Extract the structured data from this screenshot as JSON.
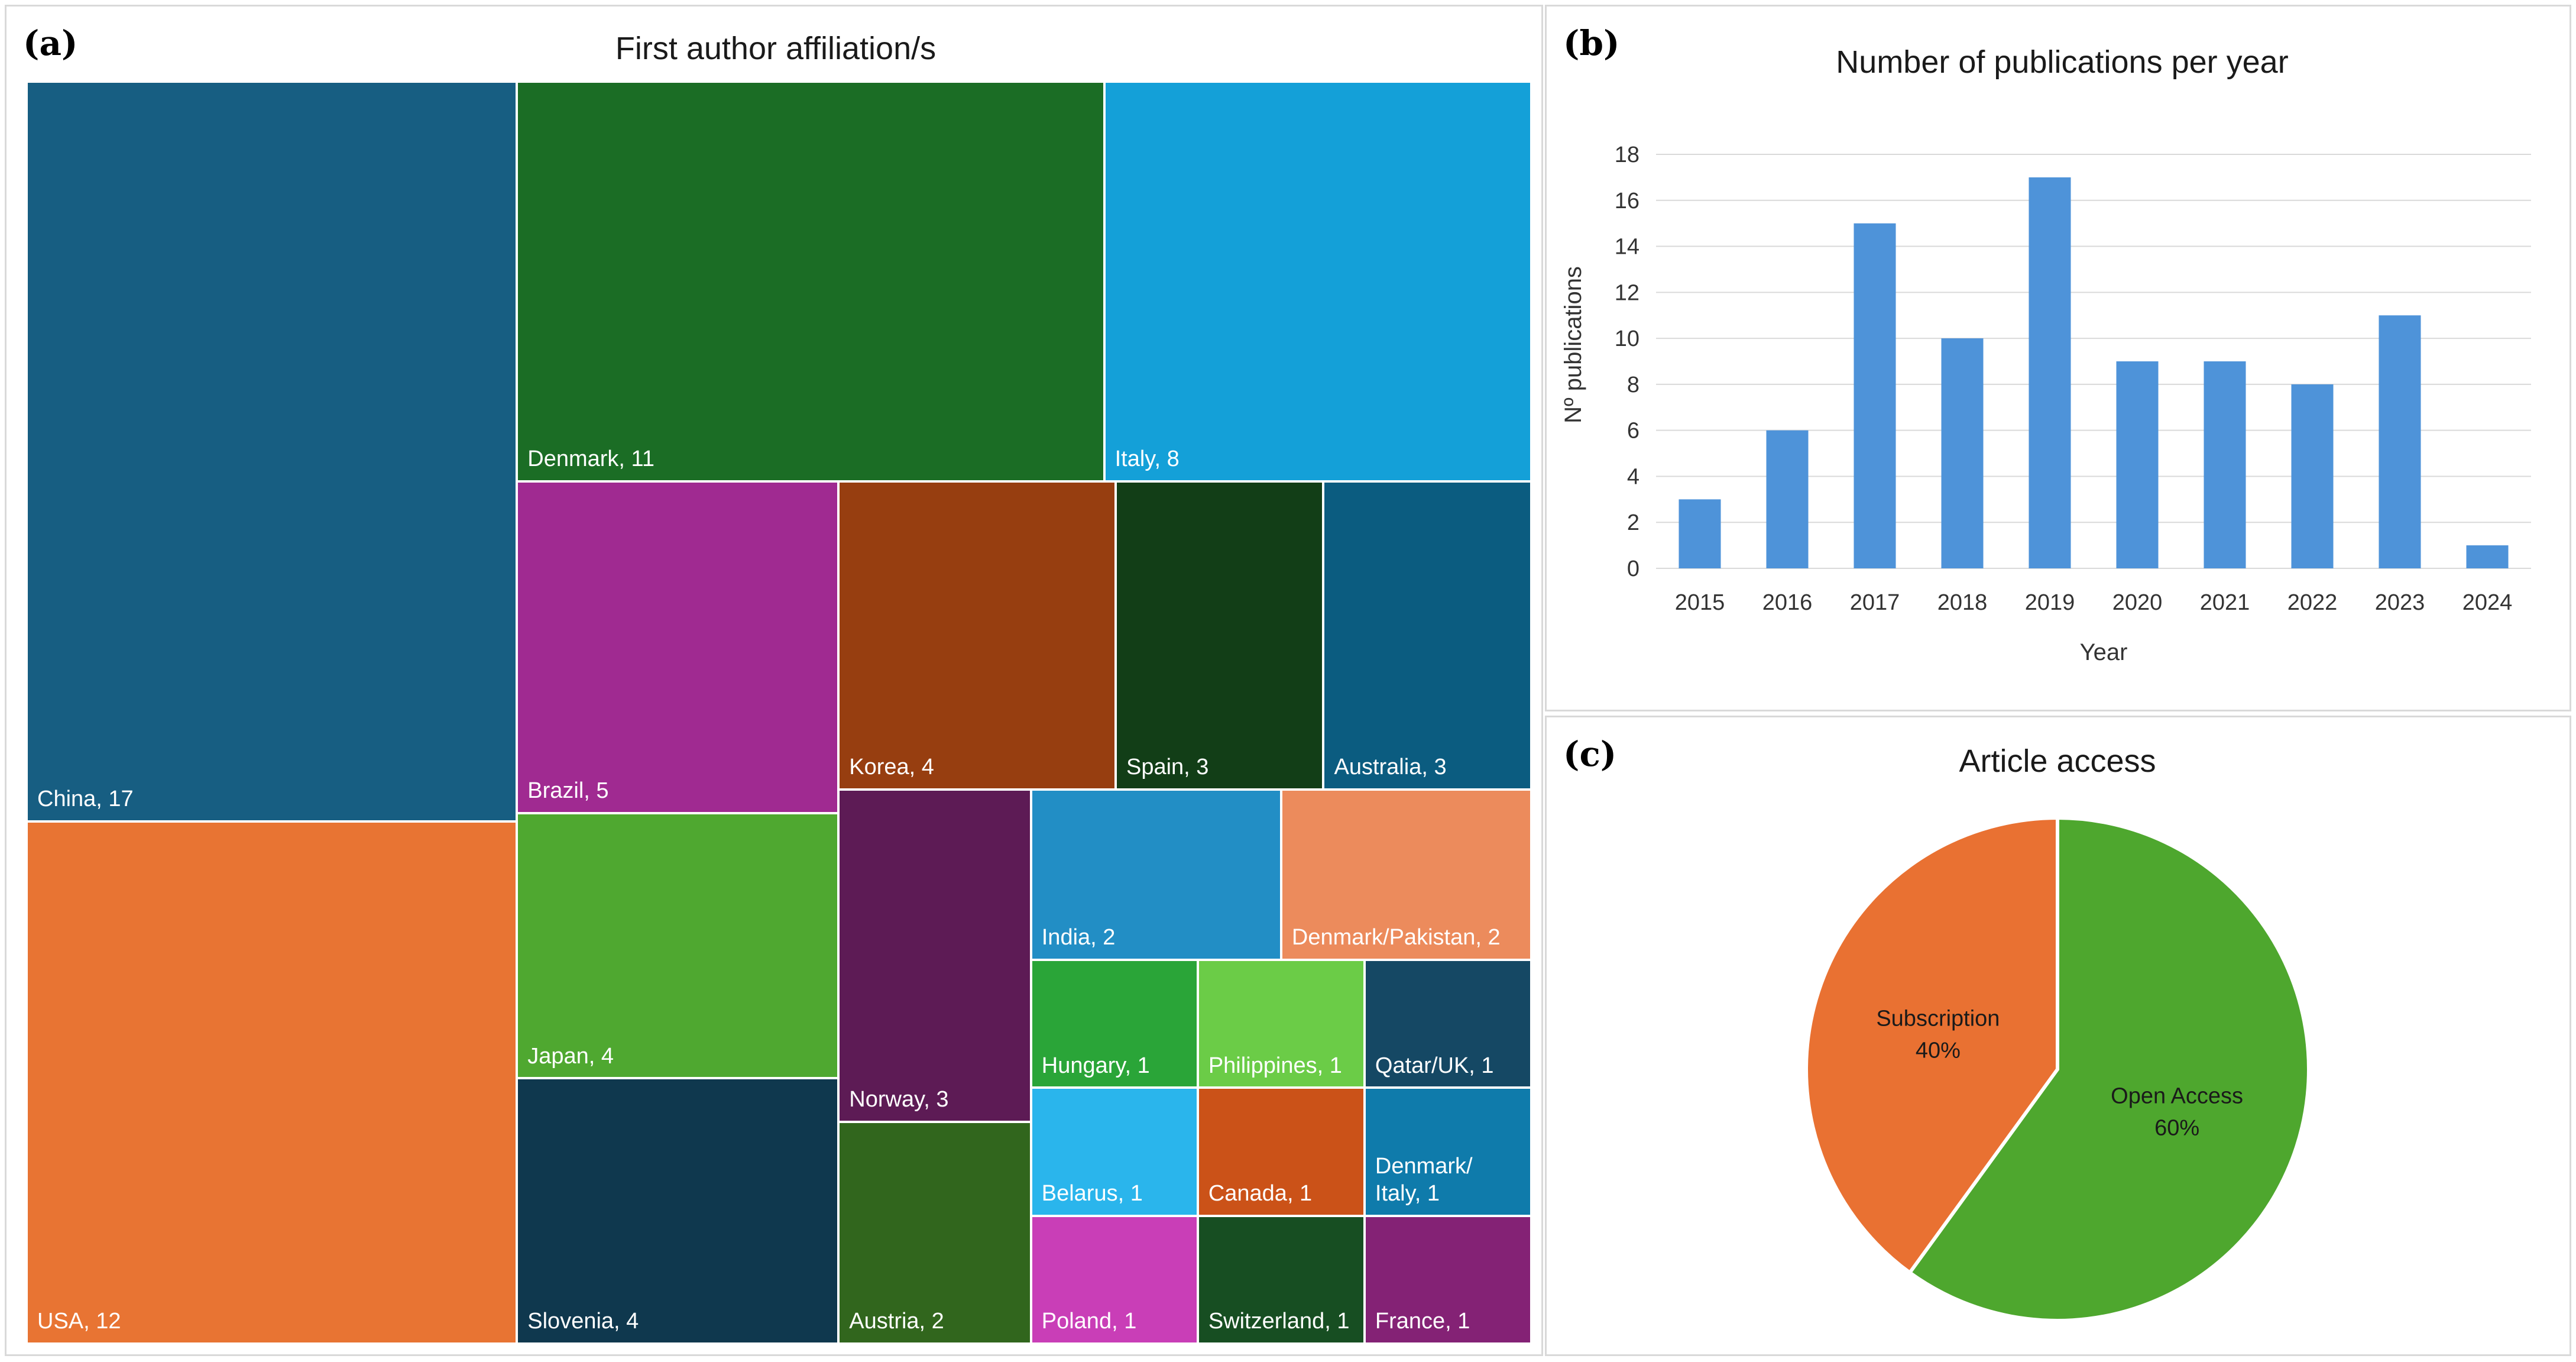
{
  "chart_data": [
    {
      "panel": "(a)",
      "type": "treemap",
      "title": "First author affiliation/s",
      "items": [
        {
          "name": "China",
          "value": 17,
          "label": "China, 17",
          "color": "#175e82"
        },
        {
          "name": "USA",
          "value": 12,
          "label": "USA, 12",
          "color": "#e87433"
        },
        {
          "name": "Denmark",
          "value": 11,
          "label": "Denmark, 11",
          "color": "#1b6d25"
        },
        {
          "name": "Italy",
          "value": 8,
          "label": "Italy, 8",
          "color": "#14a0d8"
        },
        {
          "name": "Brazil",
          "value": 5,
          "label": "Brazil, 5",
          "color": "#a02a91"
        },
        {
          "name": "Japan",
          "value": 4,
          "label": "Japan, 4",
          "color": "#4fa830"
        },
        {
          "name": "Slovenia",
          "value": 4,
          "label": "Slovenia, 4",
          "color": "#0f384e"
        },
        {
          "name": "Korea",
          "value": 4,
          "label": "Korea, 4",
          "color": "#973e10"
        },
        {
          "name": "Spain",
          "value": 3,
          "label": "Spain, 3",
          "color": "#123e17"
        },
        {
          "name": "Australia",
          "value": 3,
          "label": "Australia, 3",
          "color": "#0b5c80"
        },
        {
          "name": "Norway",
          "value": 3,
          "label": "Norway, 3",
          "color": "#5d1b55"
        },
        {
          "name": "Austria",
          "value": 2,
          "label": "Austria, 2",
          "color": "#31661d"
        },
        {
          "name": "India",
          "value": 2,
          "label": "India, 2",
          "color": "#228ec5"
        },
        {
          "name": "Denmark/Pakistan",
          "value": 2,
          "label": "Denmark/Pakistan, 2",
          "color": "#ec8b5c"
        },
        {
          "name": "Hungary",
          "value": 1,
          "label": "Hungary, 1",
          "color": "#2aa538"
        },
        {
          "name": "Philippines",
          "value": 1,
          "label": "Philippines, 1",
          "color": "#6bcc47"
        },
        {
          "name": "Qatar/UK",
          "value": 1,
          "label": "Qatar/UK, 1",
          "color": "#154864"
        },
        {
          "name": "Belarus",
          "value": 1,
          "label": "Belarus, 1",
          "color": "#2ab5ec"
        },
        {
          "name": "Canada",
          "value": 1,
          "label": "Canada, 1",
          "color": "#cb5218"
        },
        {
          "name": "Denmark/Italy",
          "value": 1,
          "label": "Denmark/\nItaly, 1",
          "color": "#0f7bab"
        },
        {
          "name": "Poland",
          "value": 1,
          "label": "Poland, 1",
          "color": "#c93eb7"
        },
        {
          "name": "Switzerland",
          "value": 1,
          "label": "Switzerland, 1",
          "color": "#174e22"
        },
        {
          "name": "France",
          "value": 1,
          "label": "France, 1",
          "color": "#842275"
        }
      ]
    },
    {
      "panel": "(b)",
      "type": "bar",
      "title": "Number of publications per year",
      "xlabel": "Year",
      "ylabel": "Nº publications",
      "categories": [
        "2015",
        "2016",
        "2017",
        "2018",
        "2019",
        "2020",
        "2021",
        "2022",
        "2023",
        "2024"
      ],
      "values": [
        3,
        6,
        15,
        10,
        17,
        9,
        9,
        8,
        11,
        1
      ],
      "ylim": [
        0,
        18
      ],
      "yticks": [
        "0",
        "2",
        "4",
        "6",
        "8",
        "10",
        "12",
        "14",
        "16",
        "18"
      ],
      "grid": true,
      "color": "#4e93d9"
    },
    {
      "panel": "(c)",
      "type": "pie",
      "title": "Article access",
      "slices": [
        {
          "label": "Open Access",
          "pct_label": "60%",
          "value": 60,
          "color": "#4ea72e"
        },
        {
          "label": "Subscription",
          "pct_label": "40%",
          "value": 40,
          "color": "#e97132"
        }
      ]
    }
  ]
}
